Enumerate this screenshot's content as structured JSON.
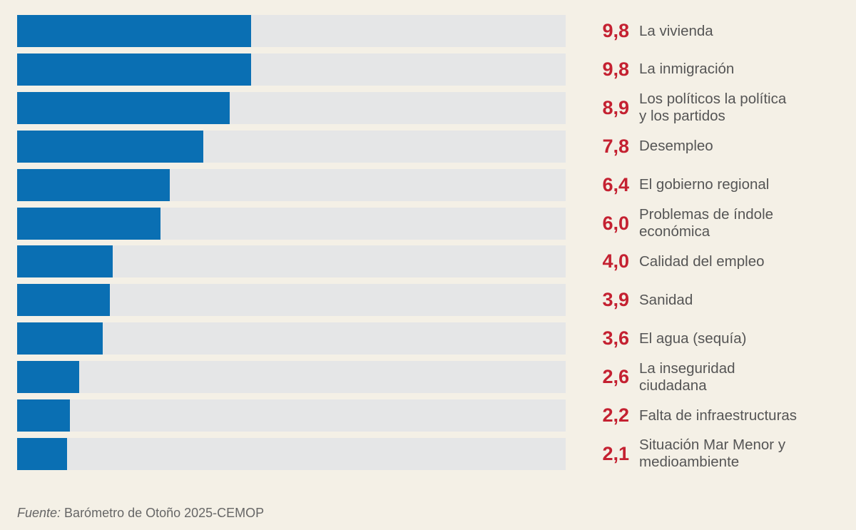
{
  "chart_data": {
    "type": "bar",
    "orientation": "horizontal",
    "categories": [
      "La vivienda",
      "La inmigración",
      "Los políticos la política\ny los partidos",
      "Desempleo",
      "El gobierno regional",
      "Problemas de índole\neconómica",
      "Calidad del empleo",
      "Sanidad",
      "El agua (sequía)",
      "La inseguridad\nciudadana",
      "Falta de infraestructuras",
      "Situación Mar Menor y\nmedioambiente"
    ],
    "values": [
      9.8,
      9.8,
      8.9,
      7.8,
      6.4,
      6.0,
      4.0,
      3.9,
      3.6,
      2.6,
      2.2,
      2.1
    ],
    "value_labels": [
      "9,8",
      "9,8",
      "8,9",
      "7,8",
      "6,4",
      "6,0",
      "4,0",
      "3,9",
      "3,6",
      "2,6",
      "2,2",
      "2,1"
    ],
    "xlim": [
      0,
      23
    ],
    "grid": false,
    "colors": {
      "bar": "#0a6fb3",
      "track": "#e5e6e7",
      "value": "#c42131",
      "background": "#f4f0e6"
    }
  },
  "source": {
    "prefix": "Fuente:",
    "text": " Barómetro de Otoño 2025-CEMOP"
  }
}
